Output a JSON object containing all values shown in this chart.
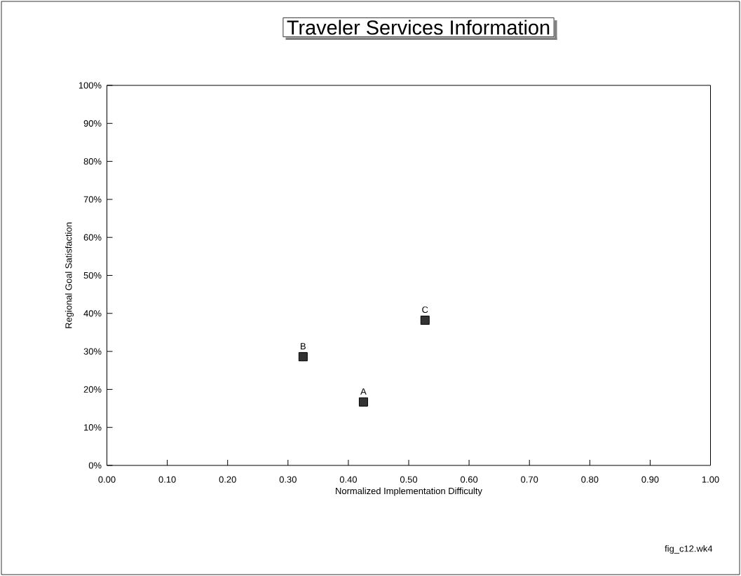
{
  "chart_data": {
    "type": "scatter",
    "title": "Traveler Services Information",
    "xlabel": "Normalized Implementation Difficulty",
    "ylabel": "Regional Goal Satisfaction",
    "x": [
      0.425,
      0.325,
      0.527
    ],
    "values": [
      16.7,
      28.6,
      38.2
    ],
    "color": "#333333",
    "marker": "square",
    "xlim": [
      0,
      1
    ],
    "ylim": [
      0,
      100
    ],
    "xticks": [
      {
        "value": 0,
        "label": "0.00"
      },
      {
        "value": 0.1,
        "label": "0.10"
      },
      {
        "value": 0.2,
        "label": "0.20"
      },
      {
        "value": 0.3,
        "label": "0.30"
      },
      {
        "value": 0.4,
        "label": "0.40"
      },
      {
        "value": 0.5,
        "label": "0.50"
      },
      {
        "value": 0.6,
        "label": "0.60"
      },
      {
        "value": 0.7,
        "label": "0.70"
      },
      {
        "value": 0.8,
        "label": "0.80"
      },
      {
        "value": 0.9,
        "label": "0.90"
      },
      {
        "value": 1,
        "label": "1.00"
      }
    ],
    "yticks": [
      {
        "value": 0,
        "label": "0%"
      },
      {
        "value": 10,
        "label": "10%"
      },
      {
        "value": 20,
        "label": "20%"
      },
      {
        "value": 30,
        "label": "30%"
      },
      {
        "value": 40,
        "label": "40%"
      },
      {
        "value": 50,
        "label": "50%"
      },
      {
        "value": 60,
        "label": "60%"
      },
      {
        "value": 70,
        "label": "70%"
      },
      {
        "value": 80,
        "label": "80%"
      },
      {
        "value": 90,
        "label": "90%"
      },
      {
        "value": 100,
        "label": "100%"
      }
    ],
    "grid": false,
    "annotations": [
      {
        "text": "A",
        "x": 0.425,
        "y": 16.7
      },
      {
        "text": "B",
        "x": 0.325,
        "y": 28.6
      },
      {
        "text": "C",
        "x": 0.527,
        "y": 38.2
      },
      "fig_c12.wk4"
    ]
  }
}
